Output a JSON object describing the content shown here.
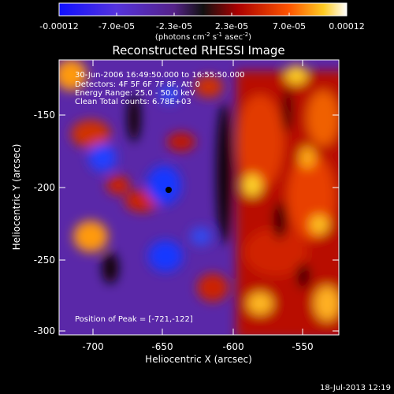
{
  "colorbar": {
    "ticks": [
      "-0.00012",
      "-7.0e-05",
      "-2.3e-05",
      "2.3e-05",
      "7.0e-05",
      "0.00012"
    ],
    "units": "(photons cm",
    "units_sup1": "-2",
    "units_mid": " s",
    "units_sup2": "-1",
    "units_end": " asec",
    "units_sup3": "-2",
    "units_close": ")"
  },
  "plot": {
    "title": "Reconstructed RHESSI Image",
    "info_line1": "30-Jun-2006 16:49:50.000 to 16:55:50.000",
    "info_line2": "Detectors: 4F 5F 6F 7F 8F, Att 0",
    "info_line3": "Energy Range: 25.0 - 50.0 keV",
    "info_line4": "Clean     Total counts: 6.78E+03",
    "peak_label": "Position of Peak = [-721,-122]",
    "xlabel": "Heliocentric X (arcsec)",
    "ylabel": "Heliocentric Y (arcsec)",
    "xticks": [
      "-700",
      "-650",
      "-600",
      "-550"
    ],
    "yticks": [
      "-150",
      "-200",
      "-250",
      "-300"
    ]
  },
  "footer": {
    "timestamp": "18-Jul-2013 12:19"
  },
  "colors": {
    "background": "#000000",
    "axis": "#ffffff"
  }
}
